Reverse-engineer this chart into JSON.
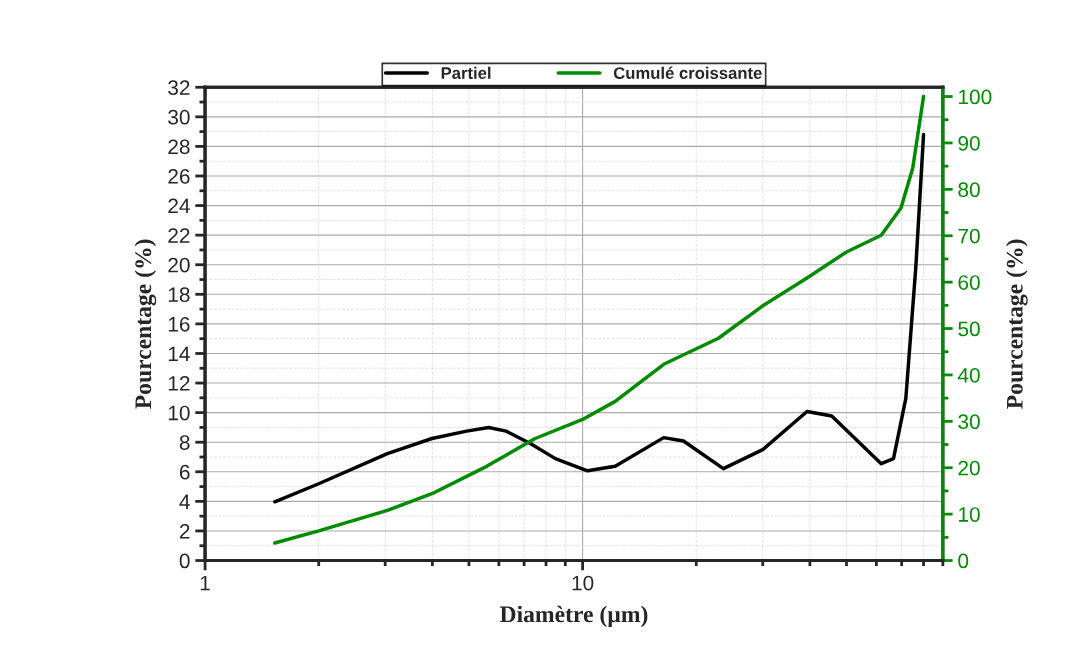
{
  "chart_data": {
    "type": "line",
    "xlabel": "Diamètre (µm)",
    "ylabel": "Pourcentage (%)",
    "y2label": "Pourcentage (%)",
    "log": "x",
    "xlim": [
      1,
      90
    ],
    "xticks": [
      1,
      10
    ],
    "ylim": [
      0,
      32
    ],
    "yticks": [
      0,
      2,
      4,
      6,
      8,
      10,
      12,
      14,
      16,
      18,
      20,
      22,
      24,
      26,
      28,
      30,
      32
    ],
    "y2lim": [
      0,
      102
    ],
    "y2ticks": [
      0,
      10,
      20,
      30,
      40,
      50,
      60,
      70,
      80,
      90,
      100
    ],
    "grid": true,
    "legend": "top",
    "series": [
      {
        "name": "Partiel",
        "color": "#000000",
        "x": [
          1.53,
          2.0,
          3.04,
          3.99,
          4.93,
          5.64,
          6.27,
          7.29,
          8.47,
          10.3,
          12.2,
          16.4,
          18.5,
          23.6,
          30.0,
          39.3,
          45.7,
          61.8,
          66.6,
          71.8,
          76.3,
          80.0
        ],
        "values": [
          3.97,
          5.19,
          7.23,
          8.25,
          8.75,
          8.99,
          8.75,
          7.9,
          6.89,
          6.07,
          6.38,
          8.31,
          8.08,
          6.21,
          7.5,
          10.08,
          9.77,
          6.55,
          6.89,
          10.96,
          19.8,
          28.8
        ]
      },
      {
        "name": "Cumulé croissante",
        "color": "#008c00",
        "axis": "y2",
        "x": [
          1.53,
          2.0,
          3.04,
          3.99,
          5.57,
          7.49,
          10.0,
          12.2,
          16.4,
          22.9,
          30.0,
          39.3,
          50.0,
          61.8,
          69.7,
          74.9,
          80.0
        ],
        "values": [
          3.78,
          6.38,
          10.8,
          14.4,
          20.3,
          26.3,
          30.4,
          34.3,
          42.3,
          47.9,
          54.9,
          60.9,
          66.5,
          70.1,
          76.0,
          84.6,
          100
        ]
      }
    ]
  }
}
